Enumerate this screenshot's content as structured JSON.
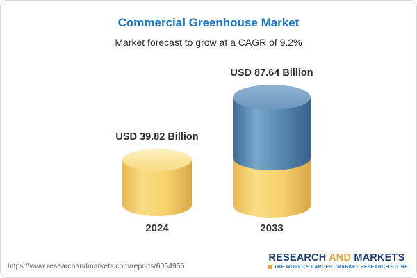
{
  "chart_data": {
    "type": "bar",
    "variant": "3d-cylinder",
    "title": "Commercial Greenhouse Market",
    "subtitle": "Market forecast to grow at a CAGR of 9.2%",
    "cagr_percent": 9.2,
    "unit": "USD Billion",
    "categories": [
      "2024",
      "2033"
    ],
    "values": [
      39.82,
      87.64
    ],
    "value_labels": [
      "USD 39.82 Billion",
      "USD 87.64 Billion"
    ],
    "legend": "none",
    "grid": false,
    "colors": {
      "bar_2024": "#f7d26c",
      "bar_2033_bottom_segment": "#f7d26c",
      "bar_2033_top_segment": "#5585ad",
      "title_accent": "#1b75bc"
    }
  },
  "footer": {
    "url": "https://www.researchandmarkets.com/reports/6054955",
    "logo": {
      "research": "RESEARCH",
      "and": "AND",
      "markets": "MARKETS",
      "tagline": "THE WORLD'S LARGEST MARKET RESEARCH STORE"
    }
  }
}
